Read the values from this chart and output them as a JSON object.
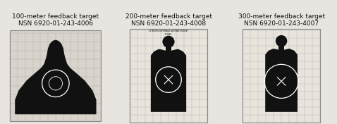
{
  "background_color": "#e8e5e0",
  "targets": [
    {
      "label": "100-meter feedback target",
      "nsn": "NSN 6920-01-243-4006",
      "type": "100m"
    },
    {
      "label": "200-meter feedback target",
      "nsn": "NSN 6920-01-243-4008",
      "type": "200m"
    },
    {
      "label": "300-meter feedback target",
      "nsn": "NSN 6920-01-243-4007",
      "type": "300m"
    }
  ],
  "grid_color": "#999999",
  "silhouette_color": "#111111",
  "paper_color_100": "#d8d4cc",
  "paper_color_200": "#e8e4dc",
  "paper_color_300": "#e8e4dc",
  "border_color": "#555555",
  "text_color": "#111111",
  "label_fontsize": 6.5,
  "nsn_fontsize": 6.2,
  "white_ring_color": "#ffffff"
}
